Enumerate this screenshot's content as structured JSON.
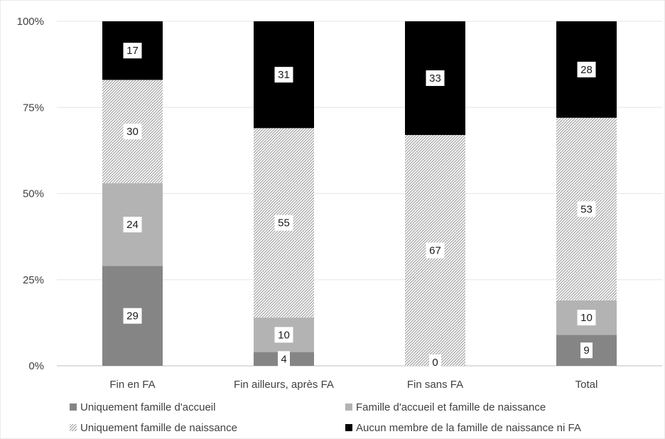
{
  "chart_data": {
    "type": "bar",
    "stacked": true,
    "percent": true,
    "categories": [
      "Fin en FA",
      "Fin ailleurs, après FA",
      "Fin sans FA",
      "Total"
    ],
    "series": [
      {
        "name": "Uniquement famille d'accueil",
        "values": [
          29,
          4,
          0,
          9
        ],
        "color": "#858585",
        "pattern": "solid"
      },
      {
        "name": "Famille d'accueil et famille de naissance",
        "values": [
          24,
          10,
          0,
          10
        ],
        "color": "#b3b3b3",
        "pattern": "solid"
      },
      {
        "name": "Uniquement famille de naissance",
        "values": [
          30,
          55,
          67,
          53
        ],
        "color": "#a6a6a6",
        "pattern": "hatch"
      },
      {
        "name": "Aucun membre de la famille de naissance ni FA",
        "values": [
          17,
          31,
          33,
          28
        ],
        "color": "#000000",
        "pattern": "solid"
      }
    ],
    "labels": [
      [
        "29",
        "4",
        "0",
        "9"
      ],
      [
        "24",
        "10",
        "",
        "10"
      ],
      [
        "30",
        "55",
        "67",
        "53"
      ],
      [
        "17",
        "31",
        "33",
        "28"
      ]
    ],
    "y_ticks": [
      "0%",
      "25%",
      "50%",
      "75%",
      "100%"
    ],
    "ylim": [
      0,
      100
    ],
    "grid": true,
    "legend_position": "bottom"
  }
}
